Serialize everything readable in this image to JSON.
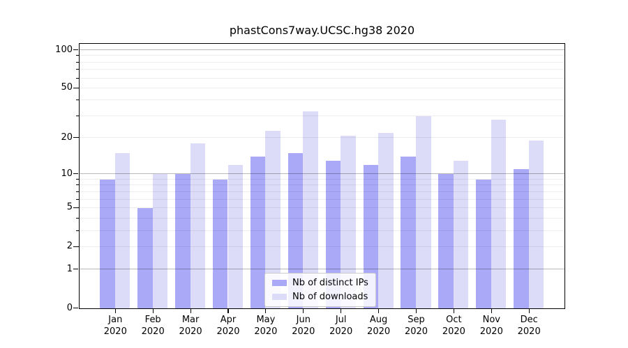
{
  "chart_data": {
    "type": "bar",
    "title": "phastCons7way.UCSC.hg38 2020",
    "categories": [
      "Jan",
      "Feb",
      "Mar",
      "Apr",
      "May",
      "Jun",
      "Jul",
      "Aug",
      "Sep",
      "Oct",
      "Nov",
      "Dec"
    ],
    "year": "2020",
    "series": [
      {
        "name": "Nb of distinct IPs",
        "color": "#a9a9f7",
        "values": [
          9,
          5,
          10,
          9,
          14,
          15,
          13,
          12,
          14,
          10,
          9,
          11
        ]
      },
      {
        "name": "Nb of downloads",
        "color": "#dcdcf9",
        "values": [
          15,
          10,
          18,
          12,
          23,
          33,
          21,
          22,
          30,
          13,
          28,
          19
        ]
      }
    ],
    "xlabel": "",
    "ylabel": "",
    "yscale": "log1p",
    "ylim": [
      0,
      100
    ],
    "yticks": [
      0,
      1,
      2,
      5,
      10,
      20,
      50,
      100
    ],
    "ytick_labels": [
      "0",
      "1",
      "2",
      "5",
      "10",
      "20",
      "50",
      "100"
    ],
    "major_gridlines": [
      1,
      10,
      100
    ],
    "minor_gridlines": [
      2,
      3,
      4,
      5,
      6,
      7,
      8,
      9,
      20,
      30,
      40,
      50,
      60,
      70,
      80,
      90
    ],
    "grid": "on",
    "legend_position": "lower center",
    "axis_color": "#000000",
    "major_grid_color": "#b3b3b3",
    "minor_grid_color": "#e8e8e8"
  }
}
